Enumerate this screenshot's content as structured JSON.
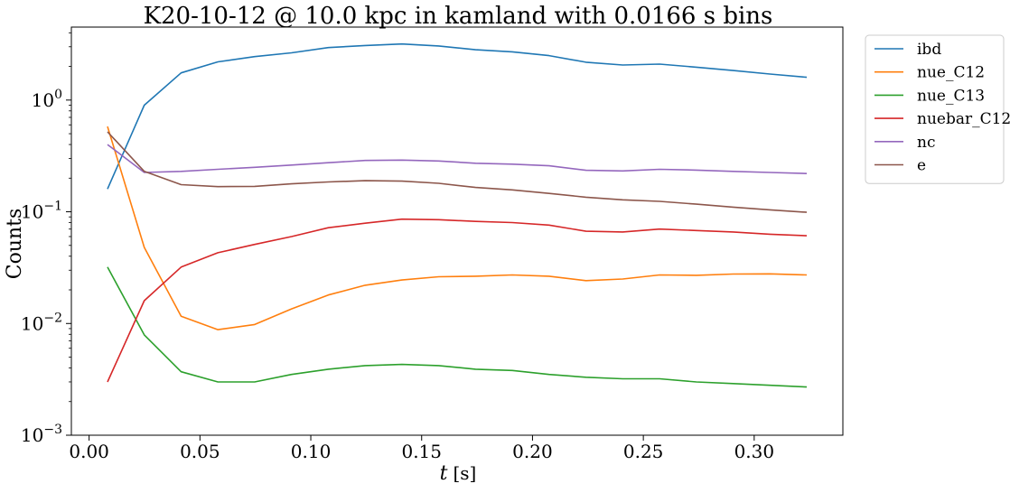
{
  "chart_data": {
    "type": "line",
    "title": "K20-10-12 @ 10.0 kpc in kamland with 0.0166 s bins",
    "xlabel_italic": "t",
    "xlabel_unit": "[s]",
    "ylabel": "Counts",
    "yscale": "log",
    "xlim": [
      -0.008,
      0.34
    ],
    "ylim": [
      0.001,
      4.5
    ],
    "xticks": [
      0.0,
      0.05,
      0.1,
      0.15,
      0.2,
      0.25,
      0.3
    ],
    "xtick_labels": [
      "0.00",
      "0.05",
      "0.10",
      "0.15",
      "0.20",
      "0.25",
      "0.30"
    ],
    "yticks": [
      {
        "value": 1,
        "base": "10",
        "exp": "0"
      },
      {
        "value": 0.1,
        "base": "10",
        "exp": "−1"
      },
      {
        "value": 0.01,
        "base": "10",
        "exp": "−2"
      },
      {
        "value": 0.001,
        "base": "10",
        "exp": "−3"
      }
    ],
    "grid": false,
    "legend_position": "outside-right-top",
    "x": [
      0.0083,
      0.0249,
      0.0415,
      0.0581,
      0.0747,
      0.0913,
      0.1079,
      0.1245,
      0.1411,
      0.1577,
      0.1743,
      0.1909,
      0.2075,
      0.2241,
      0.2407,
      0.2573,
      0.2739,
      0.2905,
      0.3071,
      0.3237
    ],
    "series": [
      {
        "name": "ibd",
        "color": "#1f77b4",
        "values": [
          0.16,
          0.9,
          1.75,
          2.2,
          2.45,
          2.65,
          2.95,
          3.08,
          3.18,
          3.05,
          2.82,
          2.7,
          2.5,
          2.18,
          2.06,
          2.1,
          1.97,
          1.84,
          1.71,
          1.6
        ]
      },
      {
        "name": "nue_C12",
        "color": "#ff7f0e",
        "values": [
          0.58,
          0.048,
          0.0116,
          0.0088,
          0.0098,
          0.0135,
          0.018,
          0.022,
          0.0245,
          0.0262,
          0.0265,
          0.0272,
          0.0265,
          0.0242,
          0.025,
          0.0272,
          0.027,
          0.0277,
          0.0278,
          0.0272
        ]
      },
      {
        "name": "nue_C13",
        "color": "#2ca02c",
        "values": [
          0.032,
          0.0079,
          0.0037,
          0.003,
          0.003,
          0.0035,
          0.0039,
          0.0042,
          0.0043,
          0.0042,
          0.0039,
          0.0038,
          0.0035,
          0.0033,
          0.0032,
          0.0032,
          0.003,
          0.0029,
          0.0028,
          0.0027
        ]
      },
      {
        "name": "nuebar_C12",
        "color": "#d62728",
        "values": [
          0.003,
          0.016,
          0.032,
          0.043,
          0.051,
          0.06,
          0.072,
          0.079,
          0.086,
          0.085,
          0.082,
          0.08,
          0.076,
          0.067,
          0.066,
          0.07,
          0.068,
          0.066,
          0.063,
          0.061
        ]
      },
      {
        "name": "nc",
        "color": "#9467bd",
        "values": [
          0.4,
          0.225,
          0.23,
          0.24,
          0.25,
          0.262,
          0.275,
          0.288,
          0.29,
          0.285,
          0.272,
          0.267,
          0.258,
          0.235,
          0.232,
          0.24,
          0.236,
          0.23,
          0.225,
          0.22
        ]
      },
      {
        "name": "e",
        "color": "#8c564b",
        "values": [
          0.52,
          0.23,
          0.175,
          0.168,
          0.169,
          0.178,
          0.185,
          0.19,
          0.188,
          0.18,
          0.165,
          0.157,
          0.146,
          0.135,
          0.128,
          0.124,
          0.117,
          0.11,
          0.104,
          0.099
        ]
      }
    ]
  }
}
